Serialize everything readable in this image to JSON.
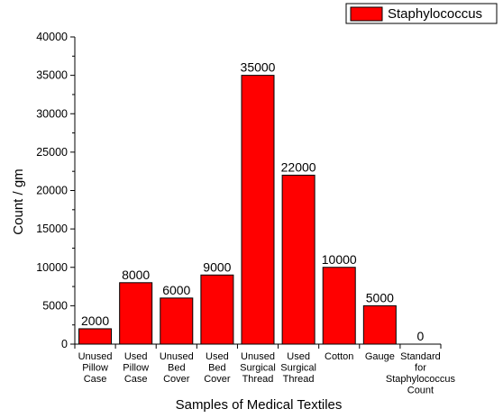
{
  "chart_data": {
    "type": "bar",
    "categories": [
      "Unused Pillow Case",
      "Used Pillow Case",
      "Unused Bed Cover",
      "Used Bed Cover",
      "Unused Surgical Thread",
      "Used Surgical Thread",
      "Cotton",
      "Gauge",
      "Standard for Staphylococcus Count"
    ],
    "category_lines": [
      [
        "Unused",
        "Pillow",
        "Case"
      ],
      [
        "Used",
        "Pillow",
        "Case"
      ],
      [
        "Unused",
        "Bed",
        "Cover"
      ],
      [
        "Used",
        "Bed",
        "Cover"
      ],
      [
        "Unused",
        "Surgical",
        "Thread"
      ],
      [
        "Used",
        "Surgical",
        "Thread"
      ],
      [
        "Cotton"
      ],
      [
        "Gauge"
      ],
      [
        "Standard",
        "for",
        "Staphylococcus",
        "Count"
      ]
    ],
    "series": [
      {
        "name": "Staphylococcus",
        "values": [
          2000,
          8000,
          6000,
          9000,
          35000,
          22000,
          10000,
          5000,
          0
        ],
        "color": "#ff0000"
      }
    ],
    "data_labels": [
      "2000",
      "8000",
      "6000",
      "9000",
      "35000",
      "22000",
      "10000",
      "5000",
      "0"
    ],
    "xlabel": "Samples of Medical Textiles",
    "ylabel": "Count / gm",
    "ylim": [
      0,
      40000
    ],
    "yticks": [
      0,
      5000,
      10000,
      15000,
      20000,
      25000,
      30000,
      35000,
      40000
    ],
    "grid": false,
    "legend_position": "top-right"
  }
}
